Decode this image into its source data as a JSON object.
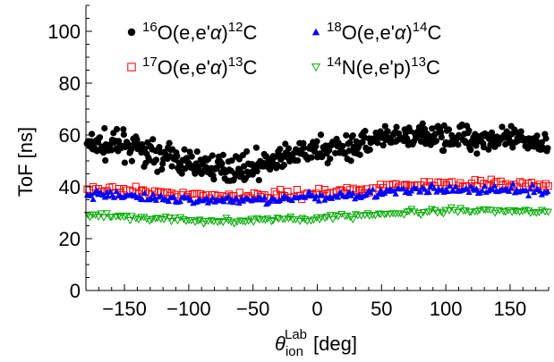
{
  "chart_data": {
    "type": "scatter",
    "xlabel": {
      "symbol": "θ",
      "sub": "ion",
      "sup": "Lab",
      "unit": "[deg]"
    },
    "ylabel": "ToF [ns]",
    "xlim": [
      -180,
      180
    ],
    "ylim": [
      0,
      110
    ],
    "xticks": [
      -150,
      -100,
      -50,
      0,
      50,
      100,
      150
    ],
    "xtick_labels": [
      "−150",
      "−100",
      "−50",
      "0",
      "50",
      "100",
      "150"
    ],
    "yticks": [
      0,
      20,
      40,
      60,
      80,
      100
    ],
    "ytick_labels": [
      "0",
      "20",
      "40",
      "60",
      "80",
      "100"
    ],
    "x_minor_step": 10,
    "y_minor_step": 5,
    "grid": false,
    "legend_position": "top",
    "series": [
      {
        "label": {
          "pre1": "16",
          "main1": "O(e,e'",
          "alpha": "α",
          "close": ")",
          "pre2": "12",
          "main2": "C"
        },
        "marker": "filled-circle",
        "color": "#000000",
        "trend": [
          [
            -180,
            56
          ],
          [
            -150,
            56
          ],
          [
            -100,
            49
          ],
          [
            -75,
            47
          ],
          [
            -50,
            48
          ],
          [
            -25,
            51
          ],
          [
            0,
            54
          ],
          [
            50,
            58
          ],
          [
            100,
            60
          ],
          [
            150,
            58
          ],
          [
            180,
            57
          ]
        ],
        "spread": 3.5,
        "step": 0.7
      },
      {
        "label": {
          "pre1": "18",
          "main1": "O(e,e'",
          "alpha": "α",
          "close": ")",
          "pre2": "14",
          "main2": "C"
        },
        "marker": "filled-triangle-up",
        "color": "#0000ff",
        "trend": [
          [
            -180,
            37
          ],
          [
            -150,
            36.5
          ],
          [
            -100,
            35
          ],
          [
            -50,
            35
          ],
          [
            0,
            36
          ],
          [
            50,
            38
          ],
          [
            100,
            39
          ],
          [
            150,
            38.5
          ],
          [
            180,
            38
          ]
        ],
        "spread": 1.2,
        "step": 1.5
      },
      {
        "label": {
          "pre1": "17",
          "main1": "O(e,e'",
          "alpha": "α",
          "close": ")",
          "pre2": "13",
          "main2": "C"
        },
        "marker": "open-square",
        "color": "#ff0000",
        "trend": [
          [
            -180,
            39
          ],
          [
            -150,
            38.5
          ],
          [
            -100,
            37
          ],
          [
            -50,
            36.5
          ],
          [
            0,
            37.5
          ],
          [
            50,
            40
          ],
          [
            100,
            41.5
          ],
          [
            150,
            41
          ],
          [
            180,
            40.5
          ]
        ],
        "spread": 1.1,
        "step": 2.2
      },
      {
        "label": {
          "pre1": "14",
          "main1": "N(e,e'p)",
          "alpha": "",
          "close": "",
          "pre2": "13",
          "main2": "C"
        },
        "marker": "open-triangle-down",
        "color": "#00aa00",
        "trend": [
          [
            -180,
            29
          ],
          [
            -150,
            28.5
          ],
          [
            -100,
            27
          ],
          [
            -50,
            27
          ],
          [
            0,
            28
          ],
          [
            50,
            29.5
          ],
          [
            100,
            30.5
          ],
          [
            150,
            30.5
          ],
          [
            180,
            30
          ]
        ],
        "spread": 0.8,
        "step": 2.2
      }
    ]
  }
}
